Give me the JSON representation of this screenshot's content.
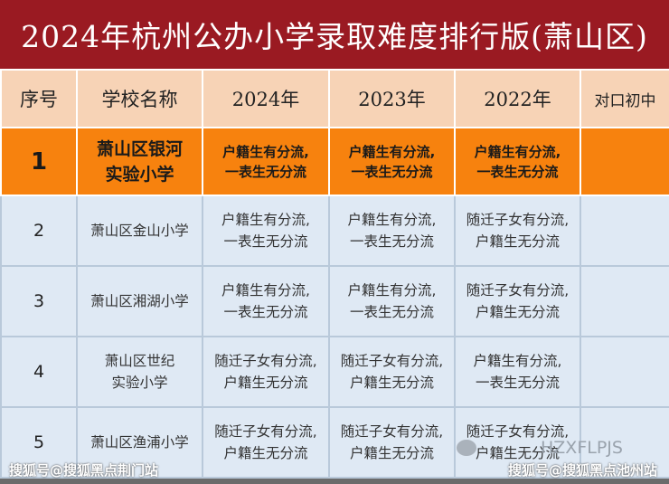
{
  "title": "2024年杭州公办小学录取难度排行版(萧山区)",
  "headers": [
    "序号",
    "学校名称",
    "2024年",
    "2023年",
    "2022年",
    "对口初中"
  ],
  "rows": [
    {
      "num": "1",
      "name_l1": "萧山区银河",
      "name_l2": "实验小学",
      "y2024": [
        "户籍生有分流,",
        "一表生无分流"
      ],
      "y2023": [
        "户籍生有分流,",
        "一表生无分流"
      ],
      "y2022": [
        "户籍生有分流,",
        "一表生无分流"
      ],
      "middle": ""
    },
    {
      "num": "2",
      "name_l1": "萧山区金山小学",
      "name_l2": "",
      "y2024": [
        "户籍生有分流,",
        "一表生无分流"
      ],
      "y2023": [
        "户籍生有分流,",
        "一表生无分流"
      ],
      "y2022": [
        "随迁子女有分流,",
        "户籍生无分流"
      ],
      "middle": ""
    },
    {
      "num": "3",
      "name_l1": "萧山区湘湖小学",
      "name_l2": "",
      "y2024": [
        "户籍生有分流,",
        "一表生无分流"
      ],
      "y2023": [
        "户籍生有分流,",
        "一表生无分流"
      ],
      "y2022": [
        "随迁子女有分流,",
        "户籍生无分流"
      ],
      "middle": ""
    },
    {
      "num": "4",
      "name_l1": "萧山区世纪",
      "name_l2": "实验小学",
      "y2024": [
        "随迁子女有分流,",
        "户籍生无分流"
      ],
      "y2023": [
        "随迁子女有分流,",
        "户籍生无分流"
      ],
      "y2022": [
        "户籍生有分流,",
        "一表生无分流"
      ],
      "middle": ""
    },
    {
      "num": "5",
      "name_l1": "萧山区渔浦小学",
      "name_l2": "",
      "y2024": [
        "随迁子女有分流,",
        "户籍生无分流"
      ],
      "y2023": [
        "随迁子女有分流,",
        "户籍生无分流"
      ],
      "y2022": [
        "随迁子女有分流,",
        "户籍生无分流"
      ],
      "middle": ""
    }
  ],
  "watermarks": {
    "left": "搜狐号@搜狐黑点荆门站",
    "right": "搜狐号@搜狐黑点池州站",
    "wechat": "HZXFLPJS"
  },
  "colors": {
    "title_bg": "#9a1a22",
    "header_bg": "#f7d3b6",
    "highlight_bg": "#f7820e",
    "row_bg": "#dfe9f4"
  }
}
